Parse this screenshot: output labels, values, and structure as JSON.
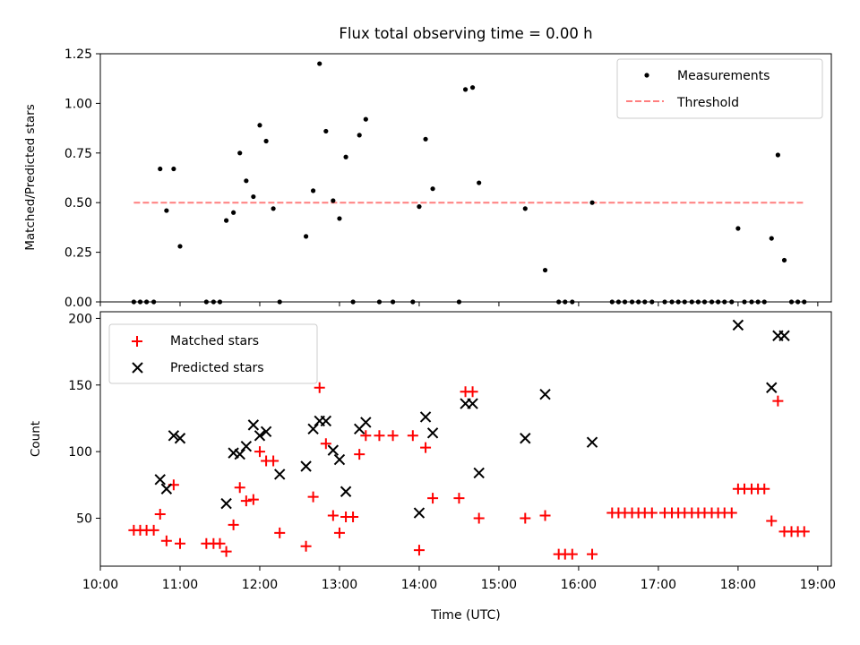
{
  "title": "Flux total observing time = 0.00 h",
  "colors": {
    "measurement": "#000000",
    "threshold": "#ff7f7f",
    "matched": "#ff0000",
    "predicted": "#000000"
  },
  "chart_data": [
    {
      "type": "scatter",
      "title": "Flux total observing time = 0.00 h",
      "ylabel": "Matched/Predicted stars",
      "xlabel": "",
      "xlim": [
        10.0,
        19.17
      ],
      "ylim": [
        0.0,
        1.25
      ],
      "yticks": [
        "0.00",
        "0.25",
        "0.50",
        "0.75",
        "1.00",
        "1.25"
      ],
      "legend": {
        "placement": "upper right",
        "entries": [
          "Measurements",
          "Threshold"
        ]
      },
      "grid": false,
      "threshold": {
        "name": "Threshold",
        "y": 0.5,
        "x": [
          10.42,
          18.84
        ]
      },
      "series": [
        {
          "name": "Measurements",
          "marker": "dot",
          "x": [
            10.42,
            10.5,
            10.58,
            10.67,
            10.75,
            10.83,
            10.92,
            11.0,
            11.33,
            11.42,
            11.5,
            11.58,
            11.67,
            11.75,
            11.83,
            11.92,
            12.0,
            12.08,
            12.17,
            12.25,
            12.58,
            12.67,
            12.75,
            12.83,
            12.92,
            13.0,
            13.08,
            13.17,
            13.25,
            13.33,
            13.5,
            13.67,
            13.92,
            14.0,
            14.08,
            14.17,
            14.5,
            14.58,
            14.67,
            14.75,
            15.33,
            15.58,
            15.75,
            15.83,
            15.92,
            16.17,
            16.42,
            16.5,
            16.58,
            16.67,
            16.75,
            16.83,
            16.92,
            17.08,
            17.17,
            17.25,
            17.33,
            17.42,
            17.5,
            17.58,
            17.67,
            17.75,
            17.83,
            17.92,
            18.0,
            18.08,
            18.17,
            18.25,
            18.33,
            18.42,
            18.5,
            18.58,
            18.67,
            18.75,
            18.83
          ],
          "y": [
            0.0,
            0.0,
            0.0,
            0.0,
            0.67,
            0.46,
            0.67,
            0.28,
            0.0,
            0.0,
            0.0,
            0.41,
            0.45,
            0.75,
            0.61,
            0.53,
            0.89,
            0.81,
            0.47,
            0.0,
            0.33,
            0.56,
            1.2,
            0.86,
            0.51,
            0.42,
            0.73,
            0.0,
            0.84,
            0.92,
            0.0,
            0.0,
            0.0,
            0.48,
            0.82,
            0.57,
            0.0,
            1.07,
            1.08,
            0.6,
            0.47,
            0.16,
            0.0,
            0.0,
            0.0,
            0.5,
            0.0,
            0.0,
            0.0,
            0.0,
            0.0,
            0.0,
            0.0,
            0.0,
            0.0,
            0.0,
            0.0,
            0.0,
            0.0,
            0.0,
            0.0,
            0.0,
            0.0,
            0.0,
            0.37,
            0.0,
            0.0,
            0.0,
            0.0,
            0.32,
            0.74,
            0.21,
            0.0,
            0.0,
            0.0
          ]
        }
      ]
    },
    {
      "type": "scatter",
      "ylabel": "Count",
      "xlabel": "Time (UTC)",
      "xlim": [
        10.0,
        19.17
      ],
      "ylim": [
        14,
        205
      ],
      "yticks": [
        "50",
        "100",
        "150",
        "200"
      ],
      "xticks": [
        "10:00",
        "11:00",
        "12:00",
        "13:00",
        "14:00",
        "15:00",
        "16:00",
        "17:00",
        "18:00",
        "19:00"
      ],
      "legend": {
        "placement": "upper left",
        "entries": [
          "Matched stars",
          "Predicted stars"
        ]
      },
      "grid": false,
      "series": [
        {
          "name": "Matched stars",
          "marker": "plus",
          "x": [
            10.42,
            10.5,
            10.58,
            10.67,
            10.75,
            10.83,
            10.92,
            11.0,
            11.33,
            11.42,
            11.5,
            11.58,
            11.67,
            11.75,
            11.83,
            11.92,
            12.0,
            12.08,
            12.17,
            12.25,
            12.58,
            12.67,
            12.75,
            12.83,
            12.92,
            13.0,
            13.08,
            13.17,
            13.25,
            13.33,
            13.5,
            13.67,
            13.92,
            14.0,
            14.08,
            14.17,
            14.5,
            14.58,
            14.67,
            14.75,
            15.33,
            15.58,
            15.75,
            15.83,
            15.92,
            16.17,
            16.42,
            16.5,
            16.58,
            16.67,
            16.75,
            16.83,
            16.92,
            17.08,
            17.17,
            17.25,
            17.33,
            17.42,
            17.5,
            17.58,
            17.67,
            17.75,
            17.83,
            17.92,
            18.0,
            18.08,
            18.17,
            18.25,
            18.33,
            18.42,
            18.5,
            18.58,
            18.67,
            18.75,
            18.83
          ],
          "y": [
            41,
            41,
            41,
            41,
            53,
            33,
            75,
            31,
            31,
            31,
            31,
            25,
            45,
            73,
            63,
            64,
            100,
            93,
            93,
            39,
            29,
            66,
            148,
            106,
            52,
            39,
            51,
            51,
            98,
            112,
            112,
            112,
            112,
            26,
            103,
            65,
            65,
            145,
            145,
            50,
            50,
            52,
            23,
            23,
            23,
            23,
            54,
            54,
            54,
            54,
            54,
            54,
            54,
            54,
            54,
            54,
            54,
            54,
            54,
            54,
            54,
            54,
            54,
            54,
            72,
            72,
            72,
            72,
            72,
            48,
            138,
            40,
            40,
            40,
            40
          ]
        },
        {
          "name": "Predicted stars",
          "marker": "x",
          "x": [
            10.75,
            10.83,
            10.92,
            11.0,
            11.58,
            11.67,
            11.75,
            11.83,
            11.92,
            12.0,
            12.08,
            12.25,
            12.58,
            12.67,
            12.75,
            12.83,
            12.92,
            13.0,
            13.08,
            13.25,
            13.33,
            14.0,
            14.08,
            14.17,
            14.58,
            14.67,
            14.75,
            15.33,
            15.58,
            16.17,
            18.0,
            18.42,
            18.5,
            18.58
          ],
          "y": [
            79,
            72,
            112,
            110,
            61,
            99,
            98,
            104,
            120,
            112,
            115,
            83,
            89,
            117,
            123,
            123,
            101,
            94,
            70,
            117,
            122,
            54,
            126,
            114,
            136,
            136,
            84,
            110,
            143,
            107,
            195,
            148,
            187,
            187
          ]
        }
      ]
    }
  ]
}
